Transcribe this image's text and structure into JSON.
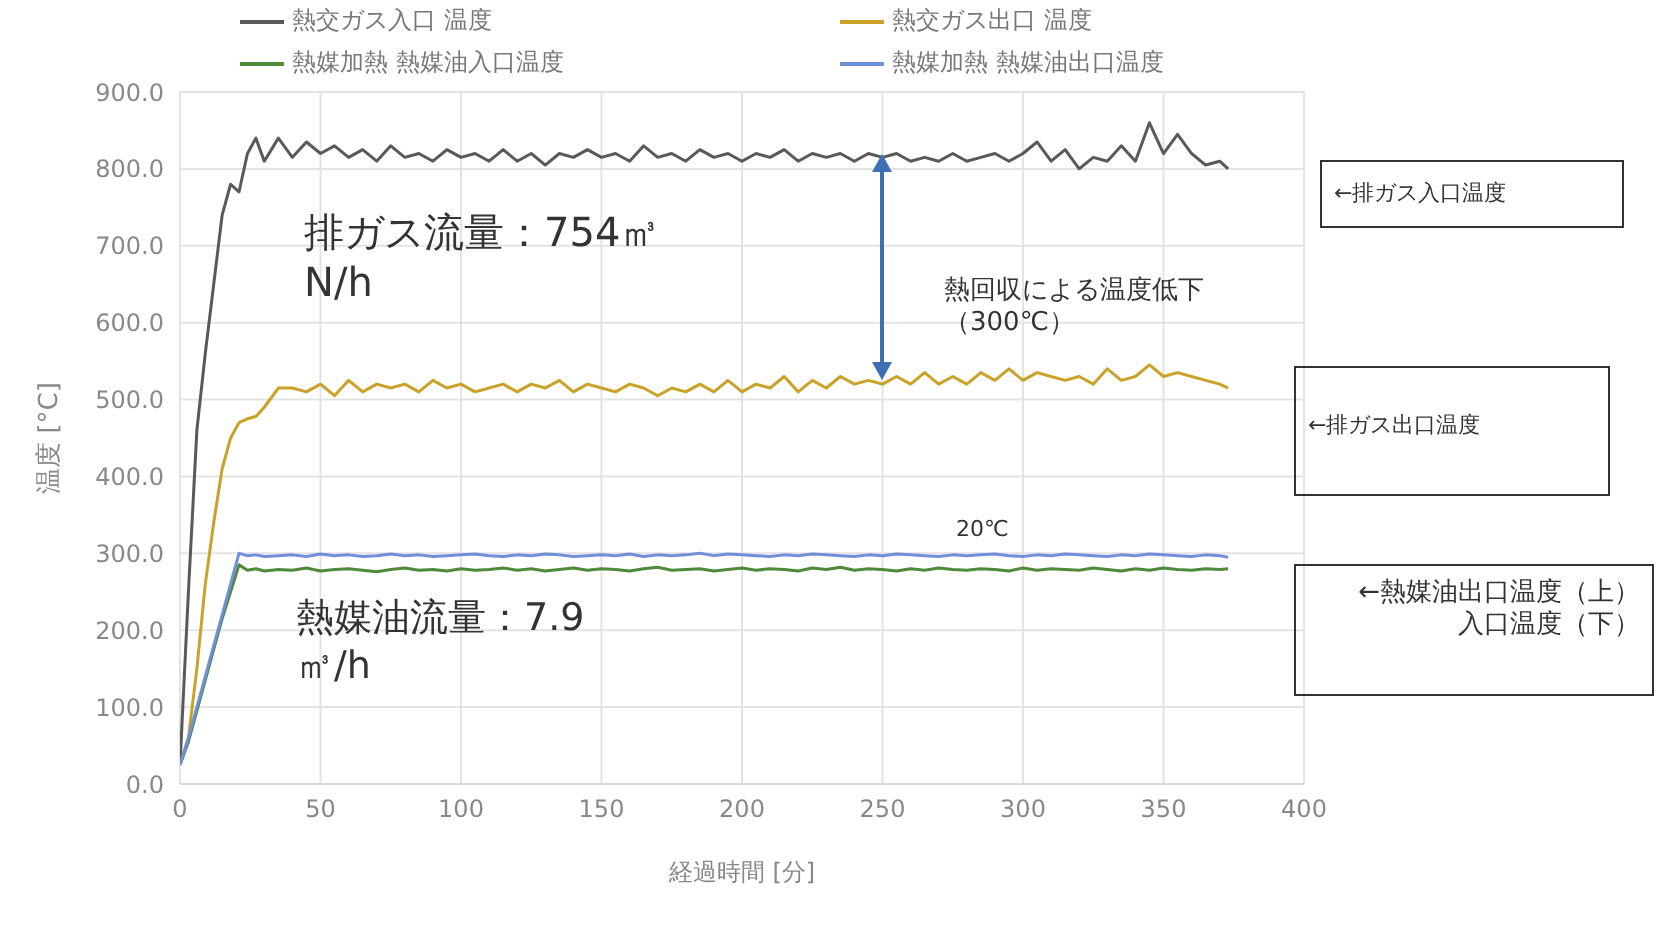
{
  "chart_data": {
    "type": "line",
    "xlabel": "経過時間 [分]",
    "ylabel": "温度 [°C]",
    "x": [
      0,
      3,
      6,
      9,
      12,
      15,
      18,
      21,
      24,
      27,
      30,
      35,
      40,
      45,
      50,
      55,
      60,
      65,
      70,
      75,
      80,
      85,
      90,
      95,
      100,
      105,
      110,
      115,
      120,
      125,
      130,
      135,
      140,
      145,
      150,
      155,
      160,
      165,
      170,
      175,
      180,
      185,
      190,
      195,
      200,
      205,
      210,
      215,
      220,
      225,
      230,
      235,
      240,
      245,
      250,
      255,
      260,
      265,
      270,
      275,
      280,
      285,
      290,
      295,
      300,
      305,
      310,
      315,
      320,
      325,
      330,
      335,
      340,
      345,
      350,
      355,
      360,
      365,
      370,
      373
    ],
    "series": [
      {
        "name": "熱交ガス入口 温度",
        "color": "#595959",
        "values": [
          25,
          250,
          460,
          560,
          650,
          740,
          780,
          770,
          820,
          840,
          810,
          840,
          815,
          835,
          820,
          830,
          815,
          825,
          810,
          830,
          815,
          820,
          810,
          825,
          815,
          820,
          810,
          825,
          810,
          820,
          805,
          820,
          815,
          825,
          815,
          820,
          810,
          830,
          815,
          820,
          810,
          825,
          815,
          820,
          810,
          820,
          815,
          825,
          810,
          820,
          815,
          820,
          810,
          820,
          815,
          820,
          810,
          815,
          810,
          820,
          810,
          815,
          820,
          810,
          820,
          835,
          810,
          825,
          800,
          815,
          810,
          830,
          810,
          860,
          820,
          845,
          820,
          805,
          810,
          800
        ]
      },
      {
        "name": "熱交ガス出口 温度",
        "color": "#c9a227",
        "values": [
          25,
          60,
          150,
          260,
          340,
          410,
          450,
          470,
          475,
          478,
          490,
          515,
          515,
          510,
          520,
          505,
          525,
          510,
          520,
          515,
          520,
          510,
          525,
          515,
          520,
          510,
          515,
          520,
          510,
          520,
          515,
          525,
          510,
          520,
          515,
          510,
          520,
          515,
          505,
          515,
          510,
          520,
          510,
          525,
          510,
          520,
          515,
          530,
          510,
          525,
          515,
          530,
          520,
          525,
          520,
          530,
          520,
          535,
          520,
          530,
          520,
          535,
          525,
          540,
          525,
          535,
          530,
          525,
          530,
          520,
          540,
          525,
          530,
          545,
          530,
          535,
          530,
          525,
          520,
          515
        ]
      },
      {
        "name": "熱媒加熱 熱媒油入口温度",
        "color": "#4e8a3a",
        "values": [
          25,
          55,
          95,
          135,
          175,
          215,
          250,
          285,
          278,
          280,
          277,
          279,
          278,
          281,
          277,
          279,
          280,
          278,
          276,
          279,
          281,
          278,
          279,
          277,
          280,
          278,
          279,
          281,
          278,
          280,
          277,
          279,
          281,
          278,
          280,
          279,
          277,
          280,
          282,
          278,
          279,
          280,
          277,
          279,
          281,
          278,
          280,
          279,
          277,
          281,
          279,
          282,
          278,
          280,
          279,
          277,
          280,
          278,
          281,
          279,
          278,
          280,
          279,
          277,
          281,
          278,
          280,
          279,
          278,
          281,
          279,
          277,
          280,
          278,
          281,
          279,
          278,
          280,
          279,
          280
        ]
      },
      {
        "name": "熱媒加熱 熱媒油出口温度",
        "color": "#6f8fd8",
        "values": [
          25,
          60,
          100,
          140,
          180,
          220,
          260,
          300,
          297,
          298,
          296,
          297,
          298,
          296,
          299,
          297,
          298,
          296,
          297,
          299,
          297,
          298,
          296,
          297,
          298,
          299,
          297,
          296,
          298,
          297,
          299,
          298,
          296,
          297,
          298,
          297,
          299,
          296,
          298,
          297,
          298,
          300,
          297,
          299,
          298,
          297,
          296,
          298,
          297,
          299,
          298,
          297,
          296,
          298,
          297,
          299,
          298,
          297,
          296,
          298,
          297,
          298,
          299,
          297,
          296,
          298,
          297,
          299,
          298,
          297,
          296,
          298,
          297,
          299,
          298,
          297,
          296,
          298,
          297,
          295
        ]
      }
    ],
    "xlim": [
      0,
      400
    ],
    "xticks": [
      0,
      50,
      100,
      150,
      200,
      250,
      300,
      350,
      400
    ],
    "ylim": [
      0,
      900
    ],
    "yticks": [
      {
        "value": 0,
        "label": "0.0"
      },
      {
        "value": 100,
        "label": "100.0"
      },
      {
        "value": 200,
        "label": "200.0"
      },
      {
        "value": 300,
        "label": "300.0"
      },
      {
        "value": 400,
        "label": "400.0"
      },
      {
        "value": 500,
        "label": "500.0"
      },
      {
        "value": 600,
        "label": "600.0"
      },
      {
        "value": 700,
        "label": "700.0"
      },
      {
        "value": 800,
        "label": "800.0"
      },
      {
        "value": 900,
        "label": "900.0"
      }
    ],
    "grid": true,
    "legend": "top",
    "marker": "none",
    "line_style": "solid",
    "annotations": [
      "排ガス流量：754㎥N/h",
      "熱回収による温度低下（300℃）",
      "20℃",
      "熱媒油流量：7.9㎥/h",
      "←排ガス入口温度",
      "←排ガス出口温度",
      "←熱媒油出口温度（上）入口温度（下）"
    ]
  }
}
